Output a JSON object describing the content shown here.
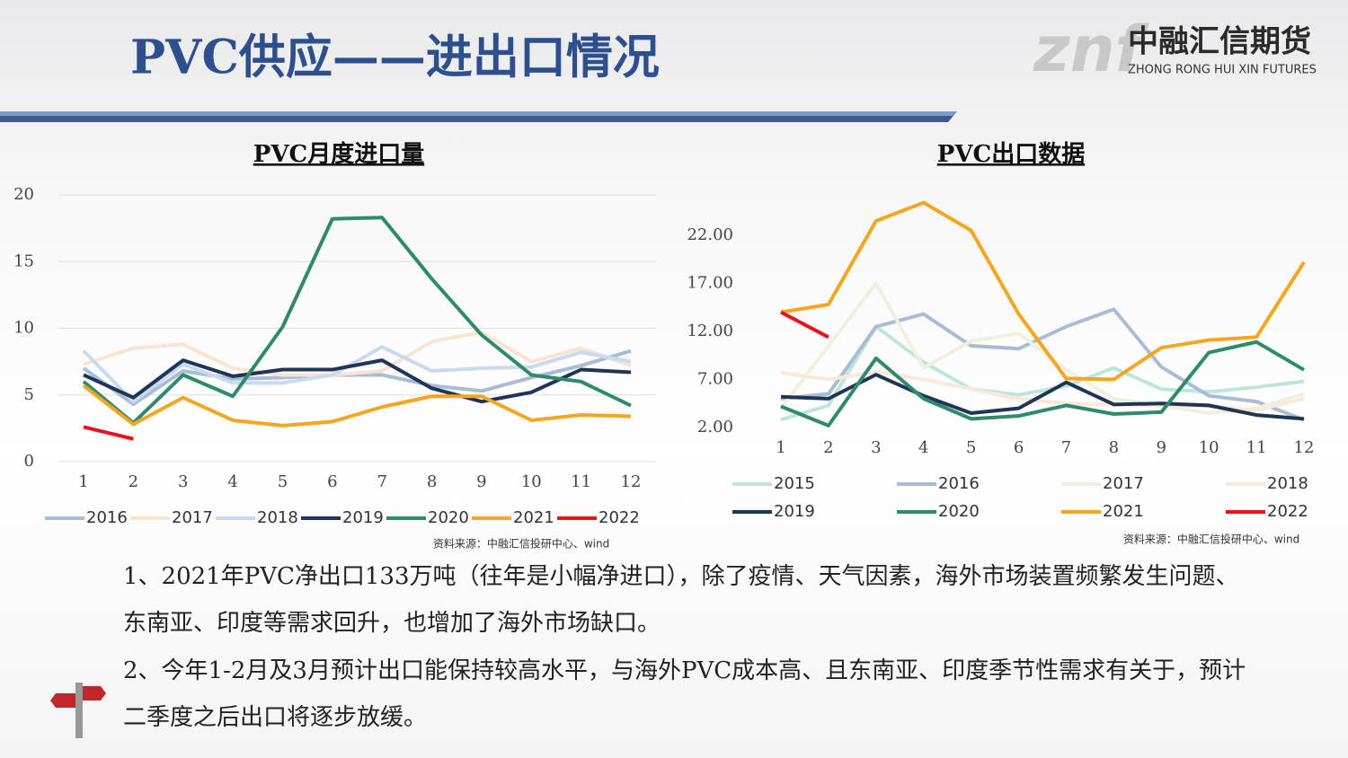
{
  "header": {
    "title": "PVC供应——进出口情况",
    "logo_mark": "znf",
    "logo_name": "中融汇信期货",
    "logo_subtitle": "ZHONG RONG HUI XIN FUTURES"
  },
  "chart_data": [
    {
      "type": "line",
      "title": "PVC月度进口量",
      "categories": [
        "1",
        "2",
        "3",
        "4",
        "5",
        "6",
        "7",
        "8",
        "9",
        "10",
        "11",
        "12"
      ],
      "ylim": [
        0,
        20
      ],
      "yticks": [
        0,
        5,
        10,
        15,
        20
      ],
      "grid": true,
      "series": [
        {
          "name": "2016",
          "color": "#a9bcd6",
          "values": [
            7.0,
            4.3,
            6.8,
            6.2,
            6.3,
            6.5,
            6.5,
            5.7,
            5.3,
            6.3,
            7.2,
            8.3
          ]
        },
        {
          "name": "2017",
          "color": "#fbe3d2",
          "values": [
            7.3,
            8.5,
            8.8,
            7.0,
            6.5,
            6.5,
            6.8,
            9.0,
            9.7,
            7.5,
            8.5,
            7.2
          ]
        },
        {
          "name": "2018",
          "color": "#c9d9ef",
          "values": [
            8.3,
            4.5,
            7.3,
            5.9,
            5.9,
            6.5,
            8.6,
            6.8,
            7.0,
            7.1,
            8.2,
            7.5
          ]
        },
        {
          "name": "2019",
          "color": "#1f3556",
          "values": [
            6.5,
            4.8,
            7.6,
            6.4,
            6.9,
            6.9,
            7.6,
            5.5,
            4.5,
            5.2,
            6.9,
            6.7
          ]
        },
        {
          "name": "2020",
          "color": "#2f8a6c",
          "values": [
            6.0,
            2.9,
            6.5,
            4.9,
            10.1,
            18.2,
            18.3,
            13.7,
            9.5,
            6.5,
            6.0,
            4.2
          ]
        },
        {
          "name": "2021",
          "color": "#f5a51e",
          "values": [
            5.7,
            2.8,
            4.8,
            3.1,
            2.7,
            3.0,
            4.1,
            4.9,
            4.9,
            3.1,
            3.5,
            3.4
          ]
        },
        {
          "name": "2022",
          "color": "#e8131b",
          "values": [
            2.6,
            1.7,
            null,
            null,
            null,
            null,
            null,
            null,
            null,
            null,
            null,
            null
          ]
        }
      ],
      "source": "资料来源：中融汇信投研中心、wind"
    },
    {
      "type": "line",
      "title": "PVC出口数据",
      "categories": [
        "1",
        "2",
        "3",
        "4",
        "5",
        "6",
        "7",
        "8",
        "9",
        "10",
        "11",
        "12"
      ],
      "ylim": [
        2,
        27
      ],
      "yticks": [
        {
          "value": 2,
          "label": "2.00"
        },
        {
          "value": 7,
          "label": "7.00"
        },
        {
          "value": 12,
          "label": "12.00"
        },
        {
          "value": 17,
          "label": "17.00"
        },
        {
          "value": 22,
          "label": "22.00"
        }
      ],
      "grid": false,
      "series": [
        {
          "name": "2015",
          "color": "#bde6da",
          "values": [
            2.8,
            4.3,
            12.5,
            8.8,
            6.0,
            5.4,
            6.3,
            8.2,
            6.0,
            5.7,
            6.2,
            6.8
          ]
        },
        {
          "name": "2016",
          "color": "#a9bcd6",
          "values": [
            5.0,
            5.5,
            12.5,
            13.8,
            10.5,
            10.2,
            12.5,
            14.3,
            8.3,
            5.3,
            4.7,
            2.8
          ]
        },
        {
          "name": "2017",
          "color": "#edf2de",
          "values": [
            4.0,
            10.5,
            17.0,
            8.2,
            11.0,
            11.8,
            8.0,
            5.0,
            4.3,
            3.5,
            4.0,
            5.5
          ]
        },
        {
          "name": "2018",
          "color": "#fde7d8",
          "values": [
            7.7,
            7.0,
            7.8,
            7.0,
            6.0,
            5.0,
            4.5,
            4.4,
            4.3,
            4.2,
            3.8,
            5.0
          ]
        },
        {
          "name": "2019",
          "color": "#1f3556",
          "values": [
            5.2,
            5.0,
            7.5,
            5.3,
            3.5,
            4.0,
            6.7,
            4.4,
            4.5,
            4.3,
            3.3,
            2.9
          ]
        },
        {
          "name": "2020",
          "color": "#2f8a6c",
          "values": [
            4.2,
            2.2,
            9.2,
            5.0,
            2.9,
            3.2,
            4.3,
            3.4,
            3.6,
            9.8,
            10.9,
            8.0
          ]
        },
        {
          "name": "2021",
          "color": "#f5a51e",
          "values": [
            14.0,
            14.8,
            23.5,
            25.4,
            22.5,
            13.8,
            7.1,
            7.0,
            10.3,
            11.1,
            11.4,
            19.2
          ]
        },
        {
          "name": "2022",
          "color": "#e8131b",
          "values": [
            14.0,
            11.4,
            null,
            null,
            null,
            null,
            null,
            null,
            null,
            null,
            null,
            null
          ]
        }
      ],
      "source": "资料来源：中融汇信投研中心、wind"
    }
  ],
  "notes": [
    "1、2021年PVC净出口133万吨（往年是小幅净进口），除了疫情、天气因素，海外市场装置频繁发生问题、东南亚、印度等需求回升，也增加了海外市场缺口。",
    "2、今年1-2月及3月预计出口能保持较高水平，与海外PVC成本高、且东南亚、印度季节性需求有关于，预计二季度之后出口将逐步放缓。"
  ]
}
